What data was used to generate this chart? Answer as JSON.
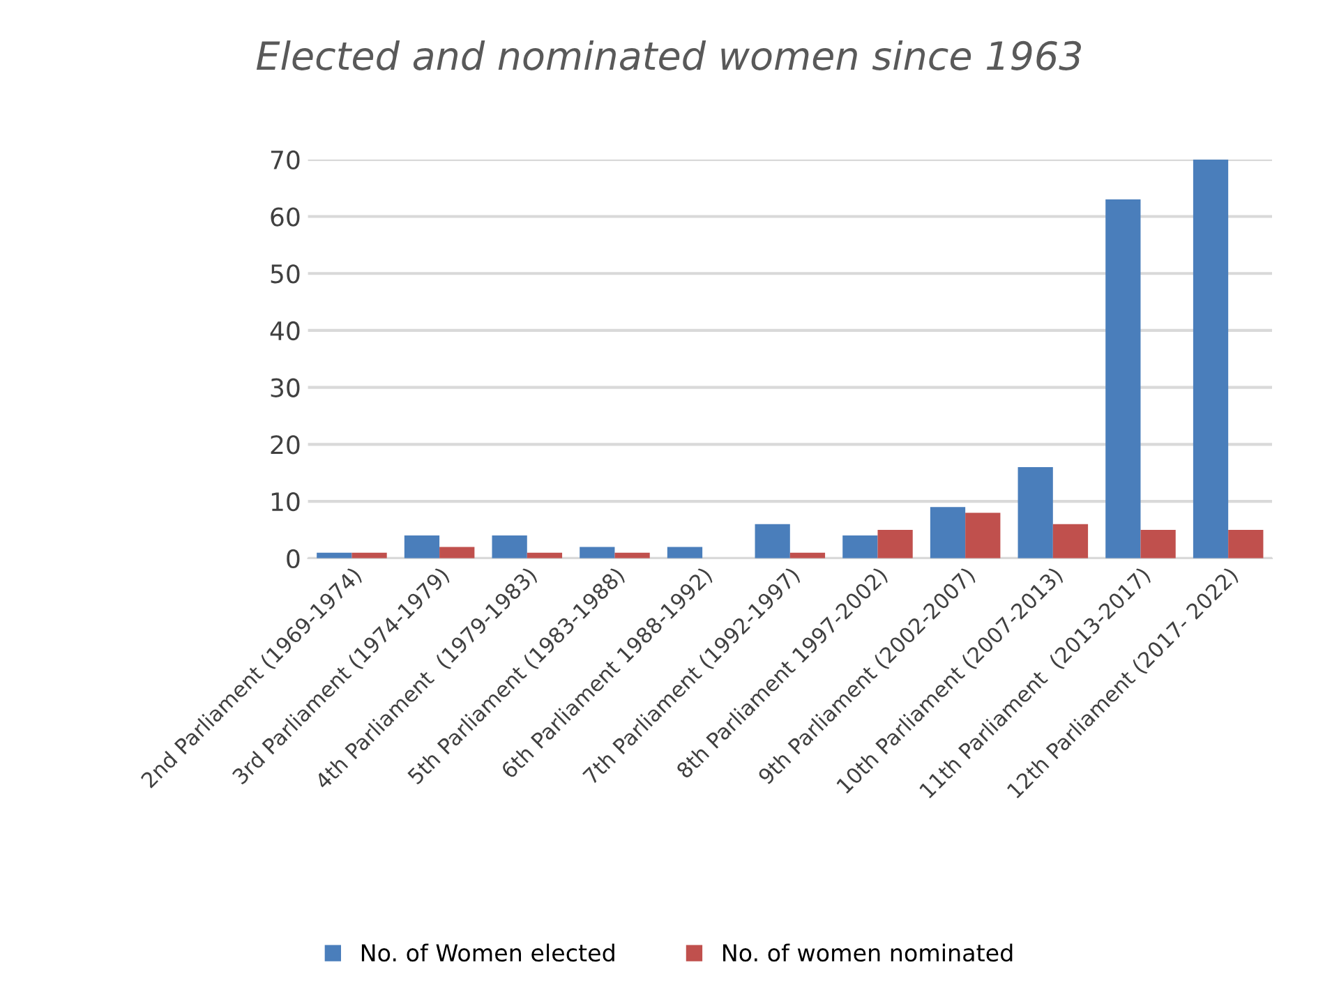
{
  "chart_data": {
    "type": "bar",
    "title": "Elected and nominated women since 1963",
    "categories": [
      "2nd Parliament (1969-1974)",
      "3rd Parliament (1974-1979)",
      "4th Parliament  (1979-1983)",
      "5th Parliament (1983-1988)",
      "6th Parliament 1988-1992)",
      "7th Parliament (1992-1997)",
      "8th Parliament 1997-2002)",
      "9th Parliament (2002-2007)",
      "10th Parliament (2007-2013)",
      "11th Parliament  (2013-2017)",
      "12th Parliament (2017- 2022)"
    ],
    "series": [
      {
        "name": "No. of Women elected",
        "color": "#4a7ebb",
        "values": [
          1,
          4,
          4,
          2,
          2,
          6,
          4,
          9,
          16,
          63,
          70
        ]
      },
      {
        "name": "No. of women nominated",
        "color": "#c0504d",
        "values": [
          1,
          2,
          1,
          1,
          0,
          1,
          5,
          8,
          6,
          5,
          5
        ]
      }
    ],
    "ylim": [
      0,
      70
    ],
    "yticks": [
      0,
      10,
      20,
      30,
      40,
      50,
      60,
      70
    ],
    "grid": "y",
    "legend": "bottom"
  }
}
